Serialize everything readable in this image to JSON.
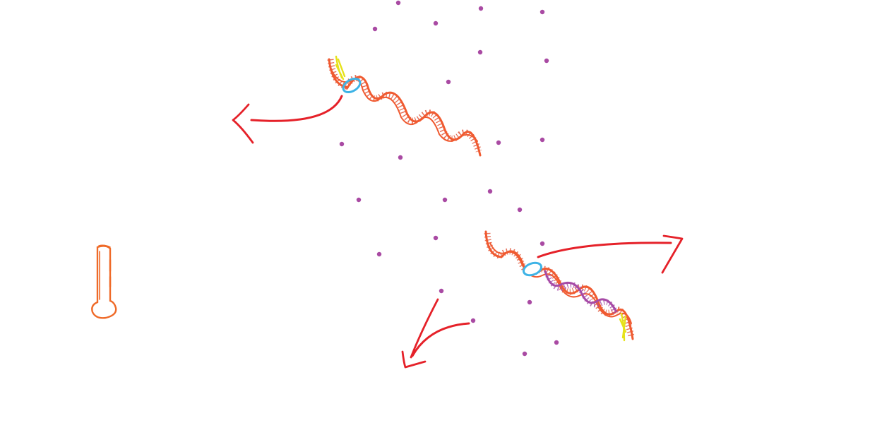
{
  "diagram": {
    "background": "#ffffff",
    "colors": {
      "dna_strand": "#f05a30",
      "hatch": "#e0553a",
      "primer": "#e6e21a",
      "polymerase": "#3db3e6",
      "new_strand": "#a64aa6",
      "arrow": "#e52129",
      "dots": "#a94aa3",
      "thermometer": "#ef6a28"
    },
    "icons": {
      "thermometer": "thermometer-icon",
      "polymerase": "polymerase-oval-icon"
    },
    "nucleotide_count": 26
  }
}
